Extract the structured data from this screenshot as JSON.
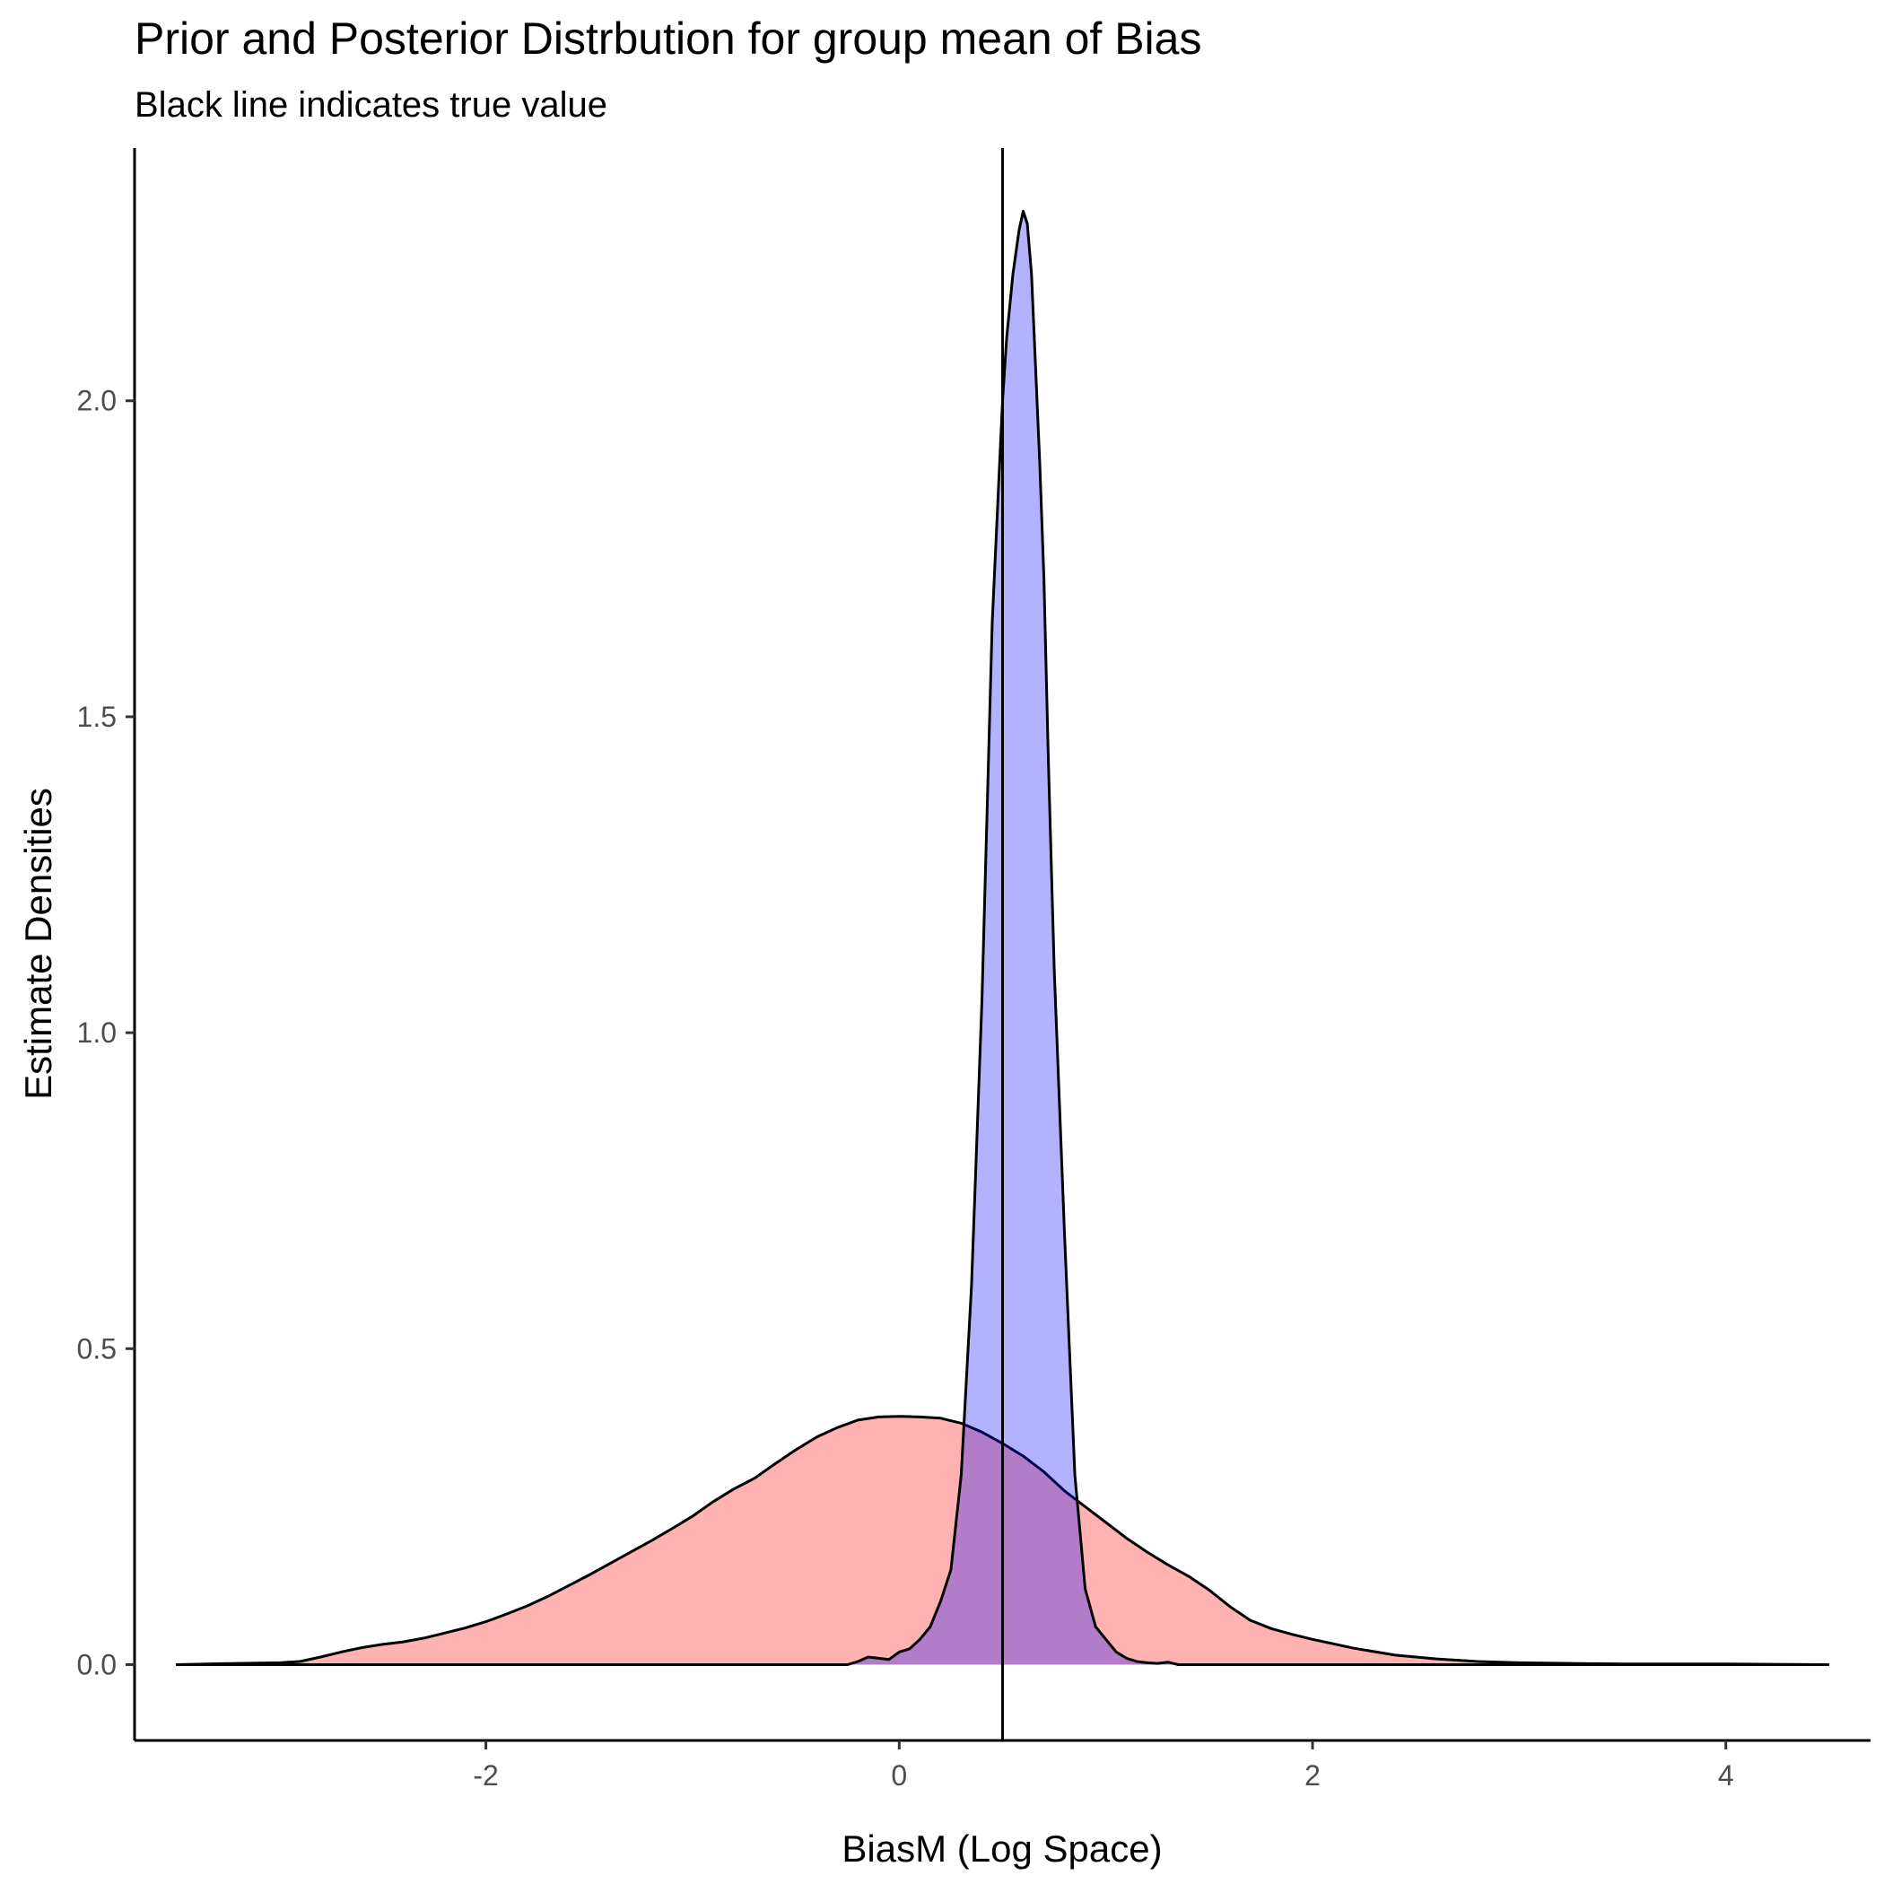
{
  "chart_data": {
    "type": "area",
    "title": "Prior and Posterior Distrbution for group mean of Bias",
    "subtitle": "Black line indicates true value",
    "xlabel": "BiasM (Log Space)",
    "ylabel": "Estimate Densities",
    "xlim": [
      -3.7,
      4.7
    ],
    "ylim": [
      -0.12,
      2.4
    ],
    "xticks": [
      {
        "value": -2,
        "label": "-2"
      },
      {
        "value": 0,
        "label": "0"
      },
      {
        "value": 2,
        "label": "2"
      },
      {
        "value": 4,
        "label": "4"
      }
    ],
    "yticks": [
      {
        "value": 0.0,
        "label": "0.0"
      },
      {
        "value": 0.5,
        "label": "0.5"
      },
      {
        "value": 1.0,
        "label": "1.0"
      },
      {
        "value": 1.5,
        "label": "1.5"
      },
      {
        "value": 2.0,
        "label": "2.0"
      }
    ],
    "grid": false,
    "legend": "none",
    "reference_line": {
      "x": 0.5,
      "color": "#000000"
    },
    "series": [
      {
        "fill": "#ff0000",
        "opacity": 0.3,
        "x": [
          -3.5,
          -3.2,
          -3.0,
          -2.9,
          -2.8,
          -2.7,
          -2.6,
          -2.5,
          -2.4,
          -2.3,
          -2.2,
          -2.1,
          -2.0,
          -1.9,
          -1.8,
          -1.7,
          -1.6,
          -1.5,
          -1.4,
          -1.3,
          -1.2,
          -1.1,
          -1.0,
          -0.9,
          -0.8,
          -0.7,
          -0.6,
          -0.5,
          -0.4,
          -0.3,
          -0.2,
          -0.1,
          0.0,
          0.1,
          0.2,
          0.3,
          0.4,
          0.5,
          0.6,
          0.7,
          0.8,
          0.9,
          1.0,
          1.1,
          1.2,
          1.3,
          1.4,
          1.5,
          1.6,
          1.7,
          1.8,
          1.9,
          2.0,
          2.2,
          2.4,
          2.6,
          2.8,
          3.0,
          3.5,
          4.0,
          4.5
        ],
        "y": [
          0.0,
          0.002,
          0.003,
          0.005,
          0.012,
          0.02,
          0.027,
          0.032,
          0.036,
          0.042,
          0.05,
          0.058,
          0.068,
          0.08,
          0.093,
          0.108,
          0.125,
          0.142,
          0.16,
          0.178,
          0.196,
          0.215,
          0.235,
          0.258,
          0.278,
          0.295,
          0.318,
          0.34,
          0.36,
          0.375,
          0.387,
          0.392,
          0.393,
          0.392,
          0.39,
          0.382,
          0.368,
          0.35,
          0.33,
          0.305,
          0.275,
          0.25,
          0.225,
          0.2,
          0.178,
          0.158,
          0.14,
          0.118,
          0.092,
          0.07,
          0.057,
          0.048,
          0.04,
          0.026,
          0.015,
          0.009,
          0.005,
          0.003,
          0.001,
          0.001,
          0.0
        ]
      },
      {
        "fill": "#0000ff",
        "opacity": 0.3,
        "x": [
          -3.5,
          -0.25,
          -0.2,
          -0.15,
          -0.1,
          -0.05,
          0.0,
          0.05,
          0.1,
          0.15,
          0.2,
          0.25,
          0.3,
          0.35,
          0.4,
          0.45,
          0.5,
          0.52,
          0.55,
          0.58,
          0.6,
          0.62,
          0.64,
          0.66,
          0.68,
          0.7,
          0.72,
          0.75,
          0.8,
          0.85,
          0.9,
          0.95,
          1.0,
          1.05,
          1.1,
          1.15,
          1.2,
          1.25,
          1.3,
          1.35,
          1.4,
          1.45,
          1.5,
          1.55,
          1.6,
          2.0,
          4.5
        ],
        "y": [
          0.0,
          0.0,
          0.005,
          0.012,
          0.01,
          0.008,
          0.02,
          0.025,
          0.04,
          0.06,
          0.1,
          0.15,
          0.3,
          0.6,
          1.05,
          1.65,
          2.0,
          2.1,
          2.2,
          2.27,
          2.3,
          2.28,
          2.2,
          2.05,
          1.9,
          1.72,
          1.45,
          1.1,
          0.68,
          0.3,
          0.12,
          0.06,
          0.04,
          0.02,
          0.01,
          0.005,
          0.003,
          0.002,
          0.004,
          0.0,
          0.0,
          0.0,
          0.0,
          0.0,
          0.0,
          0.0,
          0.0
        ]
      }
    ]
  }
}
